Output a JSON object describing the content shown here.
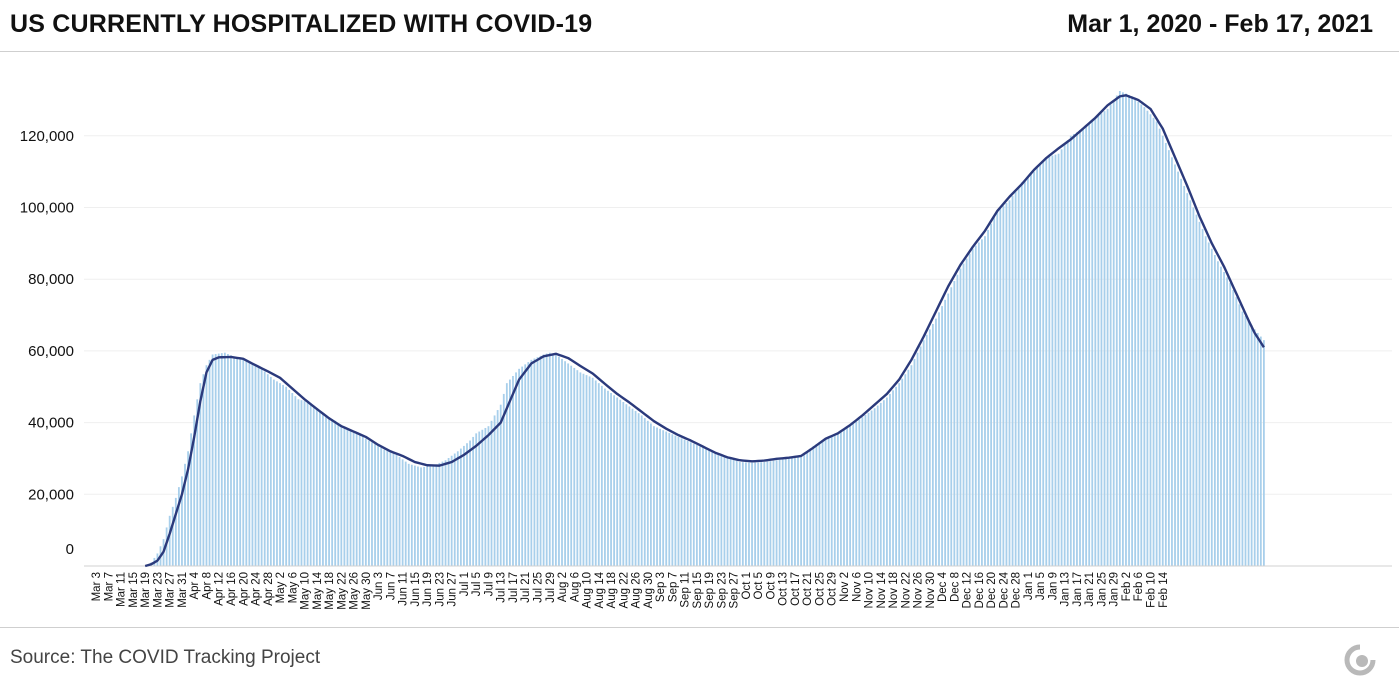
{
  "header": {
    "title": "US CURRENTLY HOSPITALIZED WITH COVID-19",
    "date_range": "Mar 1, 2020 - Feb 17, 2021"
  },
  "footer": {
    "source": "Source: The COVID Tracking Project",
    "logo_icon": "covid-tracking-project-logo-icon"
  },
  "colors": {
    "bar": "#a8cfeb",
    "line": "#2b3a7c",
    "grid": "#efefef",
    "axis_text": "#111111",
    "logo": "#b9b9b9"
  },
  "chart_data": {
    "type": "bar",
    "start_date": "2020-03-01",
    "end_date": "2021-02-17",
    "ylim": [
      0,
      135000
    ],
    "yticks": [
      0,
      20000,
      40000,
      60000,
      80000,
      100000,
      120000
    ],
    "ytick_labels": [
      "0",
      "20,000",
      "40,000",
      "60,000",
      "80,000",
      "100,000",
      "120,000"
    ],
    "xtick_labels": [
      "Mar 3",
      "Mar 7",
      "Mar 11",
      "Mar 15",
      "Mar 19",
      "Mar 23",
      "Mar 27",
      "Mar 31",
      "Apr 4",
      "Apr 8",
      "Apr 12",
      "Apr 16",
      "Apr 20",
      "Apr 24",
      "Apr 28",
      "May 2",
      "May 6",
      "May 10",
      "May 14",
      "May 18",
      "May 22",
      "May 26",
      "May 30",
      "Jun 3",
      "Jun 7",
      "Jun 11",
      "Jun 15",
      "Jun 19",
      "Jun 23",
      "Jun 27",
      "Jul 1",
      "Jul 5",
      "Jul 9",
      "Jul 13",
      "Jul 17",
      "Jul 21",
      "Jul 25",
      "Jul 29",
      "Aug 2",
      "Aug 6",
      "Aug 10",
      "Aug 14",
      "Aug 18",
      "Aug 22",
      "Aug 26",
      "Aug 30",
      "Sep 3",
      "Sep 7",
      "Sep 11",
      "Sep 15",
      "Sep 19",
      "Sep 23",
      "Sep 27",
      "Oct 1",
      "Oct 5",
      "Oct 9",
      "Oct 13",
      "Oct 17",
      "Oct 21",
      "Oct 25",
      "Oct 29",
      "Nov 2",
      "Nov 6",
      "Nov 10",
      "Nov 14",
      "Nov 18",
      "Nov 22",
      "Nov 26",
      "Nov 30",
      "Dec 4",
      "Dec 8",
      "Dec 12",
      "Dec 16",
      "Dec 20",
      "Dec 24",
      "Dec 28",
      "Jan 1",
      "Jan 5",
      "Jan 9",
      "Jan 13",
      "Jan 17",
      "Jan 21",
      "Jan 25",
      "Jan 29",
      "Feb 2",
      "Feb 6",
      "Feb 10",
      "Feb 14"
    ],
    "grid": true,
    "series": [
      {
        "kind": "bar",
        "values_anchors": [
          [
            0,
            0
          ],
          [
            18,
            0
          ],
          [
            20,
            1000
          ],
          [
            22,
            3500
          ],
          [
            24,
            7500
          ],
          [
            26,
            14000
          ],
          [
            28,
            19000
          ],
          [
            30,
            25000
          ],
          [
            32,
            32000
          ],
          [
            34,
            42000
          ],
          [
            36,
            51000
          ],
          [
            38,
            56000
          ],
          [
            40,
            59000
          ],
          [
            44,
            59500
          ],
          [
            48,
            58000
          ],
          [
            52,
            57000
          ],
          [
            56,
            55000
          ],
          [
            60,
            52000
          ],
          [
            64,
            50000
          ],
          [
            68,
            46500
          ],
          [
            72,
            45500
          ],
          [
            76,
            42500
          ],
          [
            80,
            40500
          ],
          [
            84,
            38000
          ],
          [
            88,
            36500
          ],
          [
            92,
            34500
          ],
          [
            96,
            32500
          ],
          [
            100,
            31000
          ],
          [
            104,
            28500
          ],
          [
            108,
            27500
          ],
          [
            112,
            28000
          ],
          [
            116,
            29500
          ],
          [
            120,
            32000
          ],
          [
            124,
            35000
          ],
          [
            126,
            37000
          ],
          [
            130,
            39000
          ],
          [
            132,
            42000
          ],
          [
            134,
            45000
          ],
          [
            136,
            51000
          ],
          [
            140,
            55000
          ],
          [
            144,
            57500
          ],
          [
            148,
            59000
          ],
          [
            150,
            59500
          ],
          [
            152,
            59000
          ],
          [
            156,
            56500
          ],
          [
            160,
            54000
          ],
          [
            164,
            52500
          ],
          [
            168,
            49500
          ],
          [
            172,
            47000
          ],
          [
            176,
            44500
          ],
          [
            180,
            42000
          ],
          [
            184,
            39000
          ],
          [
            188,
            37500
          ],
          [
            192,
            36000
          ],
          [
            196,
            34500
          ],
          [
            200,
            33000
          ],
          [
            204,
            31500
          ],
          [
            208,
            30500
          ],
          [
            212,
            29000
          ],
          [
            216,
            28800
          ],
          [
            220,
            29000
          ],
          [
            224,
            29500
          ],
          [
            228,
            30000
          ],
          [
            232,
            30500
          ],
          [
            236,
            33500
          ],
          [
            240,
            35500
          ],
          [
            244,
            37000
          ],
          [
            248,
            39000
          ],
          [
            252,
            41500
          ],
          [
            256,
            44000
          ],
          [
            260,
            47000
          ],
          [
            264,
            51000
          ],
          [
            268,
            56000
          ],
          [
            272,
            63000
          ],
          [
            276,
            69000
          ],
          [
            280,
            76000
          ],
          [
            284,
            83000
          ],
          [
            288,
            88500
          ],
          [
            292,
            92000
          ],
          [
            296,
            99000
          ],
          [
            300,
            102000
          ],
          [
            304,
            107000
          ],
          [
            308,
            110000
          ],
          [
            312,
            114000
          ],
          [
            316,
            115000
          ],
          [
            320,
            120000
          ],
          [
            324,
            122000
          ],
          [
            328,
            125000
          ],
          [
            332,
            127500
          ],
          [
            336,
            132500
          ],
          [
            340,
            131000
          ],
          [
            344,
            128000
          ],
          [
            348,
            124000
          ],
          [
            352,
            116000
          ],
          [
            356,
            108000
          ],
          [
            360,
            100000
          ],
          [
            364,
            92000
          ],
          [
            368,
            85000
          ],
          [
            372,
            79000
          ],
          [
            376,
            71000
          ],
          [
            380,
            66000
          ],
          [
            383,
            63000
          ]
        ]
      },
      {
        "kind": "line",
        "values_anchors": [
          [
            18,
            0
          ],
          [
            20,
            500
          ],
          [
            22,
            1500
          ],
          [
            24,
            4000
          ],
          [
            26,
            9000
          ],
          [
            28,
            14500
          ],
          [
            30,
            20000
          ],
          [
            32,
            27000
          ],
          [
            34,
            36000
          ],
          [
            36,
            46000
          ],
          [
            38,
            54000
          ],
          [
            40,
            57500
          ],
          [
            42,
            58200
          ],
          [
            46,
            58300
          ],
          [
            50,
            57800
          ],
          [
            54,
            56000
          ],
          [
            58,
            54300
          ],
          [
            62,
            52500
          ],
          [
            66,
            49500
          ],
          [
            70,
            46500
          ],
          [
            74,
            43800
          ],
          [
            78,
            41200
          ],
          [
            82,
            39000
          ],
          [
            86,
            37500
          ],
          [
            90,
            36000
          ],
          [
            94,
            33800
          ],
          [
            98,
            32000
          ],
          [
            102,
            30700
          ],
          [
            106,
            29000
          ],
          [
            110,
            28100
          ],
          [
            114,
            28000
          ],
          [
            118,
            29000
          ],
          [
            122,
            31000
          ],
          [
            126,
            33500
          ],
          [
            130,
            36500
          ],
          [
            134,
            40000
          ],
          [
            136,
            44000
          ],
          [
            140,
            52000
          ],
          [
            144,
            56500
          ],
          [
            148,
            58500
          ],
          [
            152,
            59200
          ],
          [
            156,
            58000
          ],
          [
            160,
            55800
          ],
          [
            164,
            53700
          ],
          [
            168,
            50800
          ],
          [
            172,
            48000
          ],
          [
            176,
            45600
          ],
          [
            180,
            43000
          ],
          [
            184,
            40400
          ],
          [
            188,
            38300
          ],
          [
            192,
            36500
          ],
          [
            196,
            35000
          ],
          [
            200,
            33300
          ],
          [
            204,
            31600
          ],
          [
            208,
            30300
          ],
          [
            212,
            29500
          ],
          [
            216,
            29200
          ],
          [
            220,
            29400
          ],
          [
            224,
            29900
          ],
          [
            228,
            30200
          ],
          [
            232,
            30700
          ],
          [
            236,
            33000
          ],
          [
            240,
            35500
          ],
          [
            244,
            37000
          ],
          [
            248,
            39300
          ],
          [
            252,
            42000
          ],
          [
            256,
            45000
          ],
          [
            260,
            48000
          ],
          [
            264,
            52000
          ],
          [
            268,
            57500
          ],
          [
            272,
            64000
          ],
          [
            276,
            71000
          ],
          [
            280,
            78000
          ],
          [
            284,
            84000
          ],
          [
            288,
            89000
          ],
          [
            292,
            93500
          ],
          [
            296,
            99000
          ],
          [
            300,
            103000
          ],
          [
            304,
            106500
          ],
          [
            308,
            110500
          ],
          [
            312,
            113800
          ],
          [
            316,
            116500
          ],
          [
            320,
            119000
          ],
          [
            324,
            122000
          ],
          [
            328,
            125000
          ],
          [
            332,
            128500
          ],
          [
            336,
            131000
          ],
          [
            338,
            131300
          ],
          [
            342,
            130000
          ],
          [
            346,
            127500
          ],
          [
            350,
            122000
          ],
          [
            354,
            114000
          ],
          [
            358,
            106000
          ],
          [
            362,
            97500
          ],
          [
            366,
            90000
          ],
          [
            370,
            83500
          ],
          [
            374,
            76000
          ],
          [
            378,
            68500
          ],
          [
            380,
            65000
          ],
          [
            383,
            61000
          ]
        ]
      }
    ]
  }
}
